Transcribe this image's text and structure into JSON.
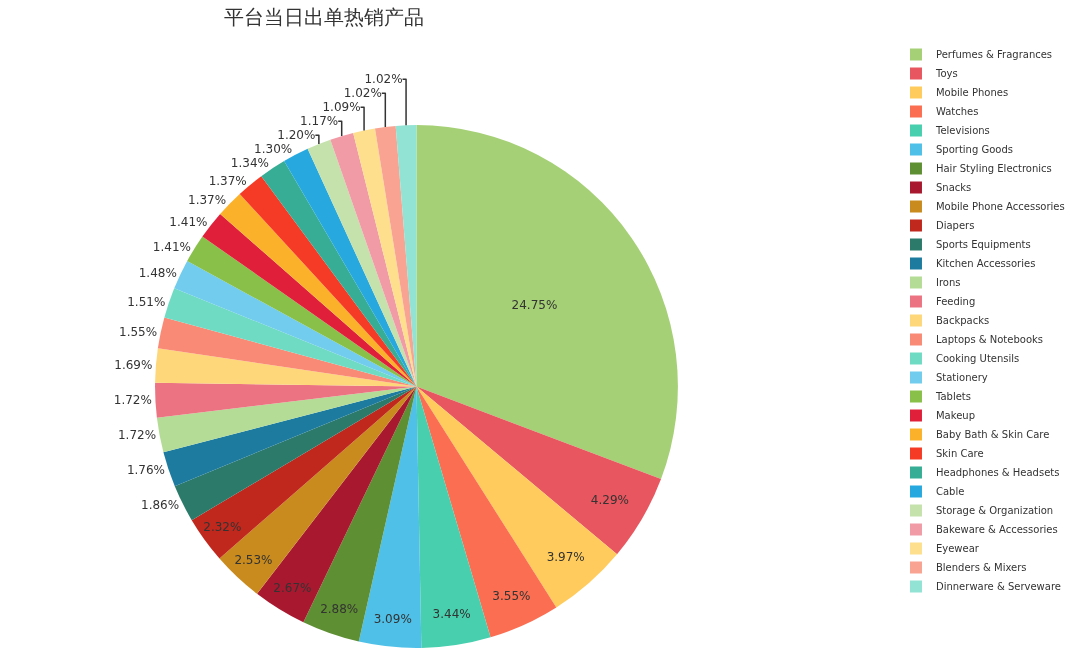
{
  "chart_data": {
    "type": "pie",
    "title": "平台当日出单热销产品",
    "legend": "right",
    "categories": [
      "Perfumes & Fragrances",
      "Toys",
      "Mobile Phones",
      "Watches",
      "Televisions",
      "Sporting Goods",
      "Hair Styling Electronics",
      "Snacks",
      "Mobile Phone Accessories",
      "Diapers",
      "Sports Equipments",
      "Kitchen Accessories",
      "Irons",
      "Feeding",
      "Backpacks",
      "Laptops & Notebooks",
      "Cooking Utensils",
      "Stationery",
      "Tablets",
      "Makeup",
      "Baby Bath & Skin Care",
      "Skin Care",
      "Headphones & Headsets",
      "Cable",
      "Storage & Organization",
      "Bakeware & Accessories",
      "Eyewear",
      "Blenders & Mixers",
      "Dinnerware & Serveware"
    ],
    "values": [
      24.75,
      4.29,
      3.97,
      3.55,
      3.44,
      3.09,
      2.88,
      2.67,
      2.53,
      2.32,
      1.86,
      1.76,
      1.72,
      1.72,
      1.69,
      1.55,
      1.51,
      1.48,
      1.41,
      1.41,
      1.37,
      1.37,
      1.34,
      1.3,
      1.2,
      1.17,
      1.09,
      1.02,
      1.02
    ],
    "value_labels": [
      "24.75%",
      "4.29%",
      "3.97%",
      "3.55%",
      "3.44%",
      "3.09%",
      "2.88%",
      "2.67%",
      "2.53%",
      "2.32%",
      "1.86%",
      "1.76%",
      "1.72%",
      "1.72%",
      "1.69%",
      "1.55%",
      "1.51%",
      "1.48%",
      "1.41%",
      "1.41%",
      "1.37%",
      "1.37%",
      "1.34%",
      "1.30%",
      "1.20%",
      "1.17%",
      "1.09%",
      "1.02%",
      "1.02%"
    ],
    "colors": [
      "#a5d075",
      "#e8565f",
      "#fecb5c",
      "#fb6e52",
      "#48cfae",
      "#4fc0e8",
      "#5f8f33",
      "#a8192f",
      "#c98b1d",
      "#c0271d",
      "#2b7a6a",
      "#1e7ba0",
      "#b4dc96",
      "#ec7482",
      "#fdd77a",
      "#f98a76",
      "#70dbc3",
      "#71ccee",
      "#88c04a",
      "#e01f3a",
      "#fbb22a",
      "#f53a26",
      "#36ad94",
      "#27a9df",
      "#c5e2ad",
      "#f19ba7",
      "#fddf8d",
      "#f9a393",
      "#92e3d3"
    ]
  }
}
